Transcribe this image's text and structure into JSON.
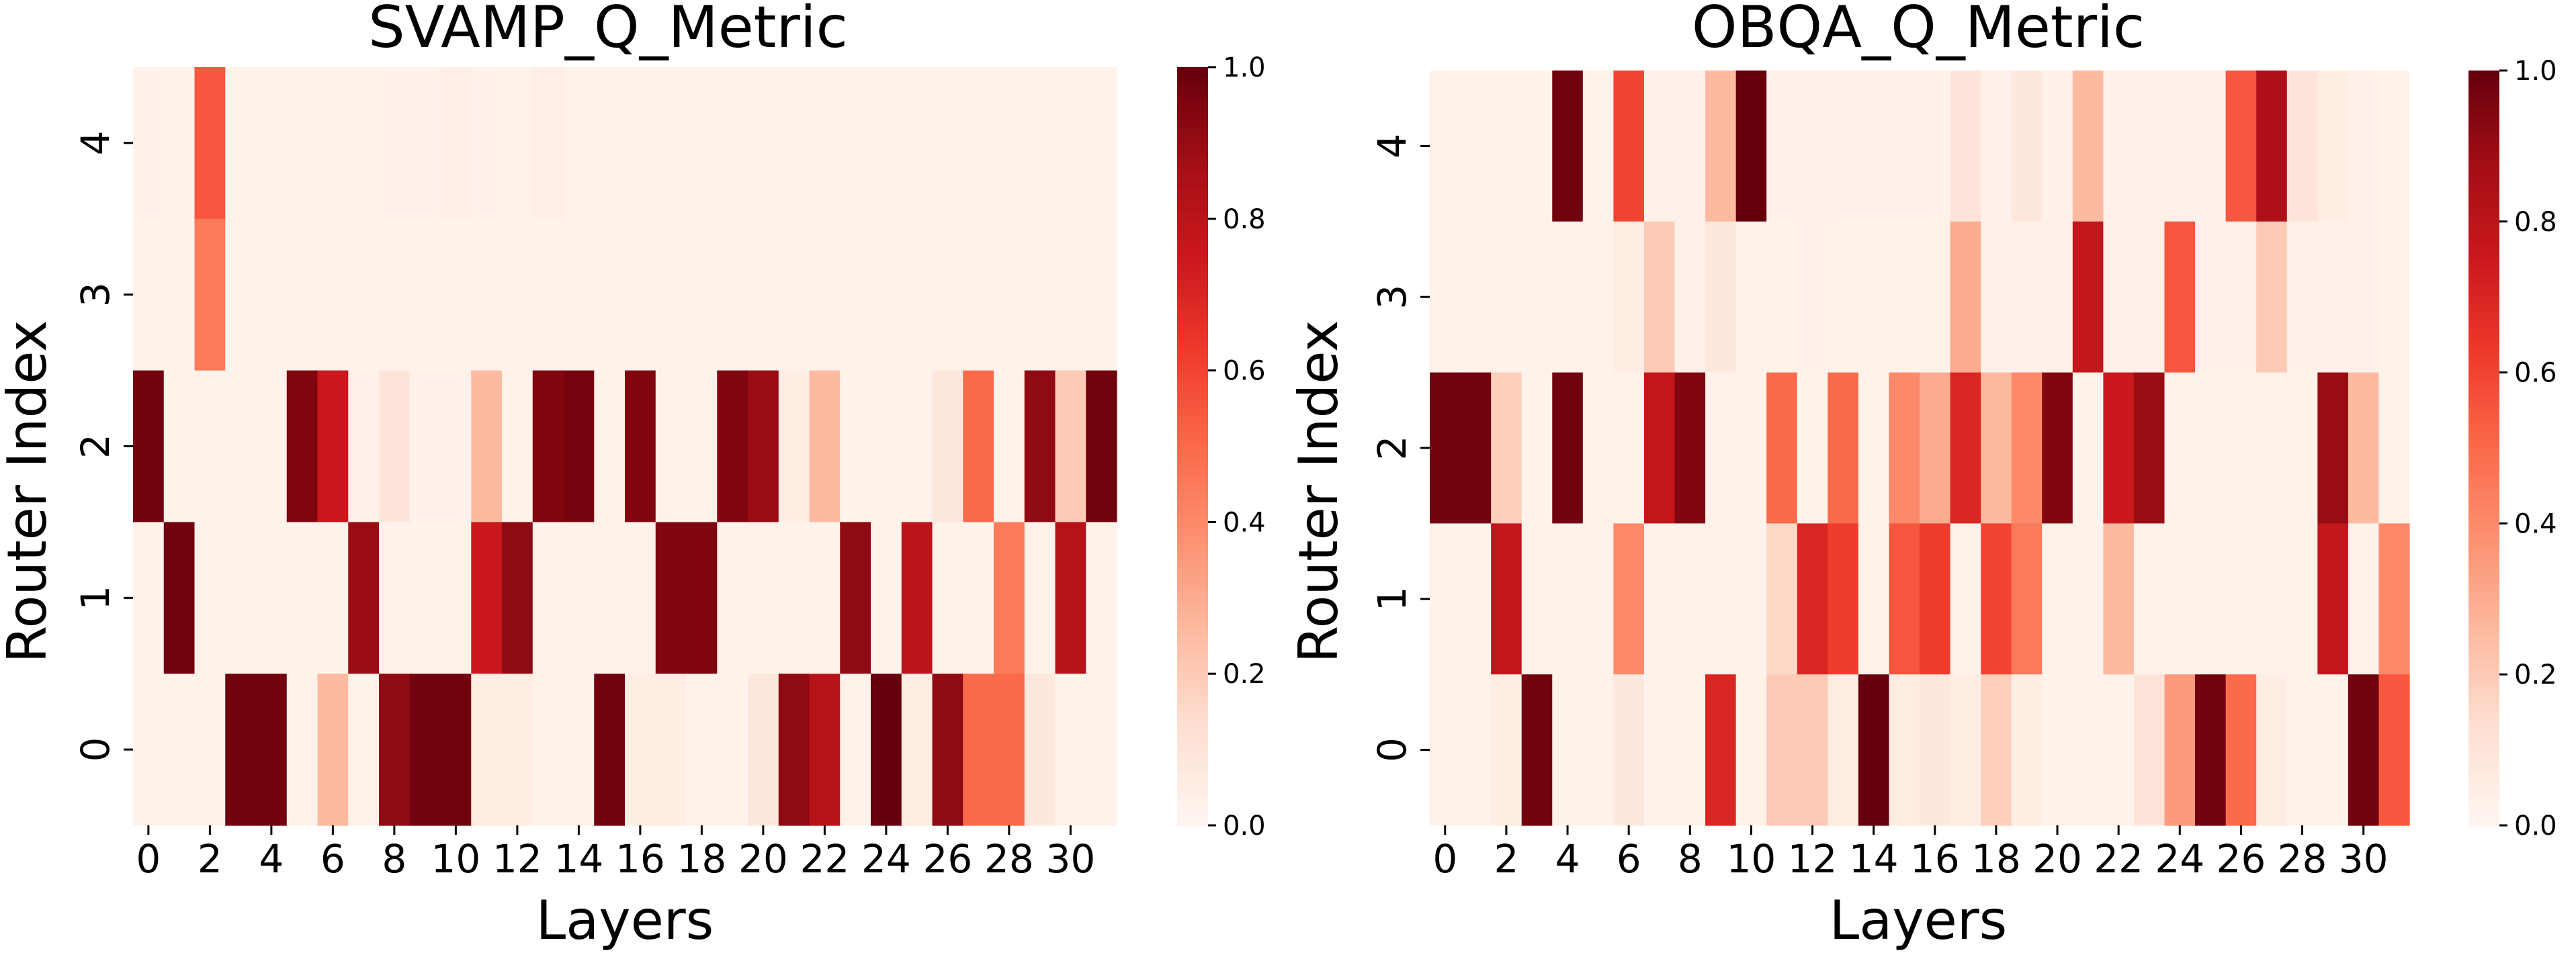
{
  "chart_data": [
    {
      "type": "heatmap",
      "title": "SVAMP_Q_Metric",
      "xlabel": "Layers",
      "ylabel": "Router Index",
      "x_categories": [
        0,
        1,
        2,
        3,
        4,
        5,
        6,
        7,
        8,
        9,
        10,
        11,
        12,
        13,
        14,
        15,
        16,
        17,
        18,
        19,
        20,
        21,
        22,
        23,
        24,
        25,
        26,
        27,
        28,
        29,
        30,
        31
      ],
      "x_tick_labels": [
        "0",
        "2",
        "4",
        "6",
        "8",
        "10",
        "12",
        "14",
        "16",
        "18",
        "20",
        "22",
        "24",
        "26",
        "28",
        "30"
      ],
      "y_categories": [
        4,
        3,
        2,
        1,
        0
      ],
      "y_tick_labels": [
        "4",
        "3",
        "2",
        "1",
        "0"
      ],
      "colorscale": "Reds",
      "vmin": 0.0,
      "vmax": 1.0,
      "colorbar_ticks": [
        "0.0",
        "0.2",
        "0.4",
        "0.6",
        "0.8",
        "1.0"
      ],
      "values": [
        [
          0.03,
          0.02,
          0.55,
          0.02,
          0.02,
          0.02,
          0.02,
          0.02,
          0.03,
          0.03,
          0.04,
          0.03,
          0.02,
          0.04,
          0.02,
          0.02,
          0.02,
          0.02,
          0.02,
          0.02,
          0.02,
          0.02,
          0.02,
          0.02,
          0.02,
          0.02,
          0.02,
          0.02,
          0.02,
          0.02,
          0.02,
          0.02
        ],
        [
          0.02,
          0.02,
          0.45,
          0.02,
          0.02,
          0.02,
          0.02,
          0.02,
          0.02,
          0.02,
          0.02,
          0.02,
          0.02,
          0.02,
          0.02,
          0.02,
          0.02,
          0.02,
          0.02,
          0.02,
          0.02,
          0.02,
          0.02,
          0.02,
          0.02,
          0.02,
          0.02,
          0.02,
          0.02,
          0.02,
          0.02,
          0.02
        ],
        [
          0.98,
          0.02,
          0.02,
          0.02,
          0.02,
          0.95,
          0.75,
          0.03,
          0.1,
          0.03,
          0.03,
          0.25,
          0.02,
          0.95,
          0.97,
          0.02,
          0.95,
          0.02,
          0.02,
          0.95,
          0.9,
          0.05,
          0.25,
          0.02,
          0.02,
          0.02,
          0.08,
          0.5,
          0.02,
          0.92,
          0.2,
          0.98
        ],
        [
          0.02,
          0.98,
          0.02,
          0.02,
          0.02,
          0.02,
          0.02,
          0.9,
          0.02,
          0.02,
          0.02,
          0.75,
          0.92,
          0.02,
          0.02,
          0.02,
          0.02,
          0.95,
          0.95,
          0.02,
          0.02,
          0.02,
          0.02,
          0.92,
          0.02,
          0.8,
          0.02,
          0.02,
          0.45,
          0.02,
          0.82,
          0.02
        ],
        [
          0.02,
          0.02,
          0.02,
          0.98,
          0.98,
          0.02,
          0.25,
          0.02,
          0.92,
          0.98,
          0.98,
          0.05,
          0.05,
          0.02,
          0.02,
          0.98,
          0.05,
          0.05,
          0.02,
          0.02,
          0.08,
          0.92,
          0.82,
          0.02,
          1.0,
          0.05,
          0.92,
          0.5,
          0.5,
          0.08,
          0.02,
          0.02
        ]
      ]
    },
    {
      "type": "heatmap",
      "title": "OBQA_Q_Metric",
      "xlabel": "Layers",
      "ylabel": "Router Index",
      "x_categories": [
        0,
        1,
        2,
        3,
        4,
        5,
        6,
        7,
        8,
        9,
        10,
        11,
        12,
        13,
        14,
        15,
        16,
        17,
        18,
        19,
        20,
        21,
        22,
        23,
        24,
        25,
        26,
        27,
        28,
        29,
        30,
        31
      ],
      "x_tick_labels": [
        "0",
        "2",
        "4",
        "6",
        "8",
        "10",
        "12",
        "14",
        "16",
        "18",
        "20",
        "22",
        "24",
        "26",
        "28",
        "30"
      ],
      "y_categories": [
        4,
        3,
        2,
        1,
        0
      ],
      "y_tick_labels": [
        "4",
        "3",
        "2",
        "1",
        "0"
      ],
      "colorscale": "Reds",
      "vmin": 0.0,
      "vmax": 1.0,
      "colorbar_ticks": [
        "0.0",
        "0.2",
        "0.4",
        "0.6",
        "0.8",
        "1.0"
      ],
      "values": [
        [
          0.02,
          0.02,
          0.02,
          0.02,
          0.98,
          0.02,
          0.6,
          0.03,
          0.03,
          0.25,
          1.0,
          0.03,
          0.03,
          0.03,
          0.03,
          0.03,
          0.03,
          0.1,
          0.03,
          0.08,
          0.03,
          0.25,
          0.03,
          0.03,
          0.03,
          0.03,
          0.55,
          0.85,
          0.1,
          0.05,
          0.03,
          0.02
        ],
        [
          0.02,
          0.02,
          0.02,
          0.02,
          0.02,
          0.02,
          0.05,
          0.2,
          0.03,
          0.08,
          0.02,
          0.02,
          0.03,
          0.02,
          0.02,
          0.02,
          0.02,
          0.3,
          0.03,
          0.03,
          0.03,
          0.78,
          0.03,
          0.03,
          0.55,
          0.03,
          0.03,
          0.2,
          0.03,
          0.03,
          0.03,
          0.02
        ],
        [
          0.98,
          0.98,
          0.18,
          0.02,
          0.98,
          0.02,
          0.02,
          0.78,
          0.95,
          0.02,
          0.02,
          0.5,
          0.02,
          0.5,
          0.02,
          0.4,
          0.3,
          0.7,
          0.25,
          0.4,
          0.95,
          0.02,
          0.75,
          0.9,
          0.02,
          0.02,
          0.02,
          0.02,
          0.02,
          0.9,
          0.25,
          0.02
        ],
        [
          0.02,
          0.02,
          0.78,
          0.02,
          0.02,
          0.02,
          0.4,
          0.02,
          0.02,
          0.02,
          0.02,
          0.15,
          0.7,
          0.62,
          0.02,
          0.55,
          0.62,
          0.02,
          0.6,
          0.45,
          0.02,
          0.02,
          0.25,
          0.02,
          0.02,
          0.02,
          0.02,
          0.02,
          0.02,
          0.78,
          0.02,
          0.4
        ],
        [
          0.02,
          0.02,
          0.05,
          0.98,
          0.02,
          0.02,
          0.08,
          0.02,
          0.02,
          0.7,
          0.02,
          0.2,
          0.2,
          0.05,
          1.0,
          0.05,
          0.08,
          0.05,
          0.18,
          0.05,
          0.02,
          0.02,
          0.02,
          0.1,
          0.35,
          0.98,
          0.5,
          0.05,
          0.02,
          0.02,
          0.98,
          0.55
        ]
      ]
    }
  ]
}
